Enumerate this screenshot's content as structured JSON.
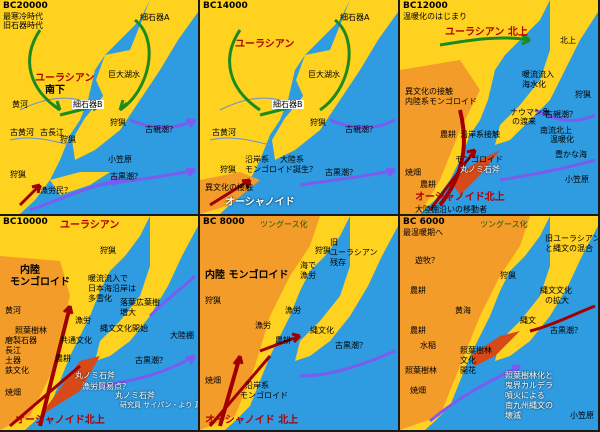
{
  "panels": [
    {
      "era": "BC20000",
      "lines": [
        "最寒冷時代",
        "旧石器時代"
      ],
      "labels": {
        "a": "細石器A",
        "b": "ユーラシアン",
        "c": "南下",
        "d": "巨大湖水",
        "e": "黄河",
        "f": "細石器B",
        "g": "古黄河",
        "h": "古長江",
        "i": "狩猟",
        "j": "狩猟",
        "k": "古親潮？",
        "l": "小笠原",
        "m": "古黒潮？",
        "n": "狩猟",
        "o": "漁労民？"
      }
    },
    {
      "era": "BC14000",
      "labels": {
        "a": "細石器A",
        "b": "ユーラシアン",
        "c": "巨大湖水",
        "d": "細石器B",
        "e": "古黄河",
        "f": "狩猟",
        "g": "古親潮？",
        "h": "狩猟",
        "i": "沿岸系",
        "j": "大陸系",
        "k": "モンゴロイド誕生？",
        "l": "古黒潮？",
        "m": "異文化の接触",
        "n": "オーシャノイド"
      }
    },
    {
      "era": "BC12000",
      "lines": [
        "温暖化のはじまり"
      ],
      "labels": {
        "a": "ユーラシアン 北上",
        "b": "北上",
        "c": "異文化の接触",
        "d": "内陸系モンゴロイド",
        "e": "暖流流入",
        "f": "海水化",
        "g": "ナウマン象",
        "h": "の渡来",
        "i": "南流北上",
        "j": "温暖化",
        "k": "農耕",
        "l": "沿岸系接触",
        "m": "豊かな海",
        "n": "古親潮？",
        "o": "焼畑",
        "p": "丸ノミ石斧",
        "q": "オーシャノイド北上",
        "r": "大陸棚沿いの移動者",
        "s": "小笠原",
        "t": "モンゴロイド",
        "u": "狩猟",
        "v": "農耕"
      }
    },
    {
      "era": "BC10000",
      "labels": {
        "a": "ユーラシアン",
        "b": "内陸",
        "c": "モンゴロイド",
        "d": "狩猟",
        "e": "暖流流入で",
        "f": "日本海沿岸は",
        "g": "多雪化",
        "h": "落葉広葉樹",
        "i": "増大",
        "j": "漁労",
        "k": "照葉樹林",
        "l": "共通文化",
        "m": "黄河",
        "n": "長江",
        "o": "農耕",
        "p": "磨製石器",
        "q": "土器",
        "r": "鉄文化",
        "s": "焼畑",
        "t": "大陸棚",
        "u": "古黒潮？",
        "v": "丸ノミ石斧",
        "w": "漁労貿易点？",
        "x": "丸ノミ石斧",
        "y": "オーシャノイド北上",
        "z": "研究員 サイパン・より 真の事態図解明",
        "aa": "縄文文化開始"
      }
    },
    {
      "era": "BC 8000",
      "labels": {
        "a": "ツングース化",
        "b": "狩猟",
        "c": "内陸 モンゴロイド",
        "d": "海で",
        "e": "漁労",
        "f": "旧",
        "g": "ユーラシアン",
        "h": "残存",
        "i": "縄文化",
        "j": "漁労",
        "k": "農耕",
        "l": "古黒潮？",
        "m": "狩猟",
        "n": "沿岸系",
        "o": "モンゴロイド",
        "p": "オーシャノイド 北上",
        "q": "焼畑",
        "r": "漁労"
      }
    },
    {
      "era": "BC 6000",
      "lines": [
        "最温暖期へ"
      ],
      "labels": {
        "a": "ツングース化",
        "b": "旧ユーラシアン",
        "c": "と縄文の混合",
        "d": "遊牧？",
        "e": "狩猟",
        "f": "農耕",
        "g": "黄海",
        "h": "縄文文化",
        "i": "の拡大",
        "j": "縄文",
        "k": "古黒潮？",
        "l": "農耕",
        "m": "水稲",
        "n": "照葉樹林",
        "o": "文化",
        "p": "開花",
        "q": "照葉樹林化と",
        "r": "鬼界カルデラ",
        "s": "噴火による",
        "t": "南九州縄文の",
        "u": "壊滅",
        "v": "焼畑",
        "w": "小笠原",
        "x": "照葉樹林"
      }
    }
  ]
}
